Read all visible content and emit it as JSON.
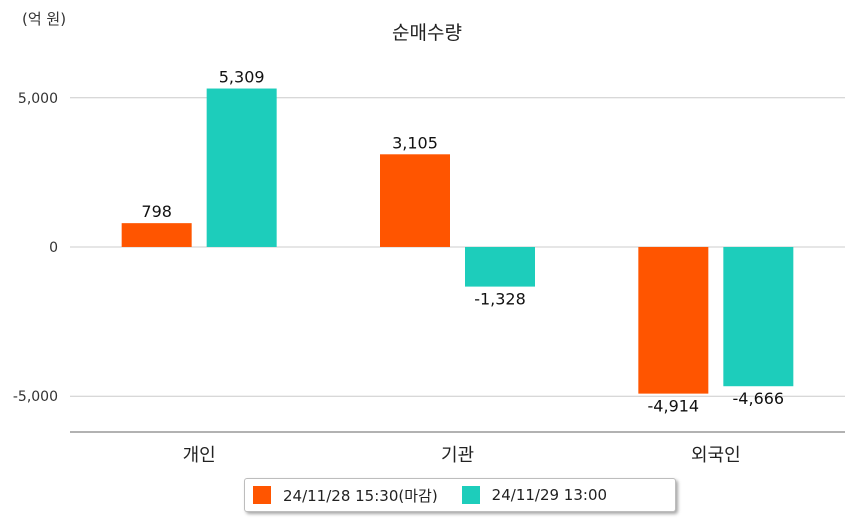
{
  "chart_data": {
    "type": "bar",
    "title": "순매수량",
    "unit_label": "(억 원)",
    "categories": [
      "개인",
      "기관",
      "외국인"
    ],
    "series": [
      {
        "name": "24/11/28 15:30(마감)",
        "color": "#ff5500",
        "values": [
          798,
          3105,
          -4914
        ],
        "labels": [
          "798",
          "3,105",
          "-4,914"
        ]
      },
      {
        "name": "24/11/29 13:00",
        "color": "#1dcdbb",
        "values": [
          5309,
          -1328,
          -4666
        ],
        "labels": [
          "5,309",
          "-1,328",
          "-4,666"
        ]
      }
    ],
    "ylim": [
      -6200,
      6600
    ],
    "yticks": [
      5000,
      0,
      -5000
    ],
    "ytick_labels": [
      "5,000",
      "0",
      "-5,000"
    ],
    "grid": true,
    "legend_position": "bottom"
  }
}
